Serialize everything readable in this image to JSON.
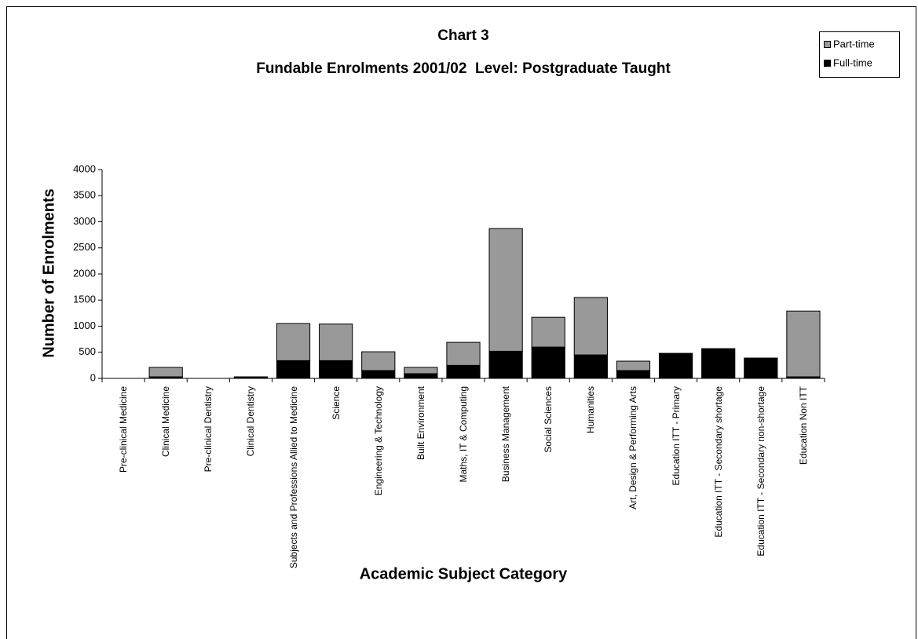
{
  "chart_data": {
    "type": "stacked_bar",
    "title": "Chart 3",
    "subtitle": "Fundable Enrolments 2001/02  Level: Postgraduate Taught",
    "x_label": "Academic Subject Category",
    "y_label": "Number of Enrolments",
    "categories": [
      "Pre-clinical Medicine",
      "Clinical Medicine",
      "Pre-clinical Dentistry",
      "Clinical Dentistry",
      "Subjects and Professions Allied to Medicine",
      "Science",
      "Engineering & Technology",
      "Built Environment",
      "Maths, IT & Computing",
      "Business Management",
      "Social Sciences",
      "Humanities",
      "Art, Design & Performing Arts",
      "Education ITT - Primary",
      "Education ITT - Secondary shortage",
      "Education ITT - Secondary non-shortage",
      "Education Non ITT"
    ],
    "series": [
      {
        "name": "Part-time",
        "color": "#999999",
        "values": [
          0,
          180,
          0,
          10,
          710,
          700,
          360,
          120,
          440,
          2350,
          570,
          1100,
          180,
          0,
          0,
          0,
          1260
        ]
      },
      {
        "name": "Full-time",
        "color": "#000000",
        "values": [
          0,
          30,
          0,
          20,
          340,
          340,
          150,
          90,
          250,
          520,
          600,
          450,
          150,
          480,
          570,
          390,
          30
        ]
      }
    ],
    "ylim": [
      0,
      4000
    ],
    "yticks": [
      0,
      500,
      1000,
      1500,
      2000,
      2500,
      3000,
      3500,
      4000
    ],
    "legend": "top-right"
  }
}
